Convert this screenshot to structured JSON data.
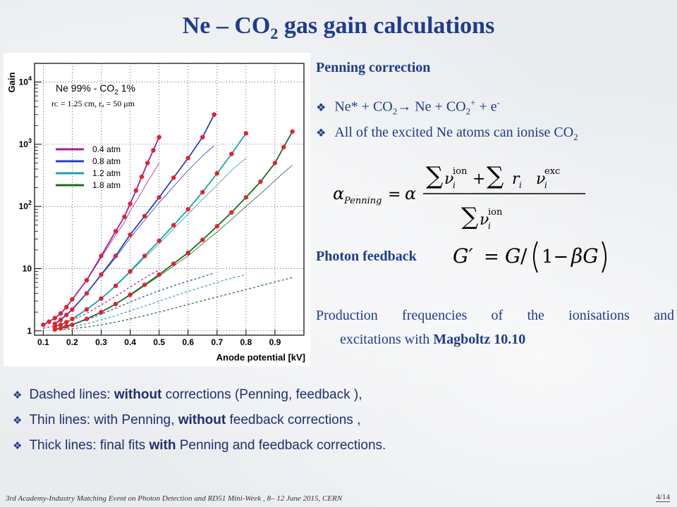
{
  "slide": {
    "title_main": "Ne – CO",
    "title_sub": "2",
    "title_rest": " gas gain calculations"
  },
  "chart_data": {
    "type": "line",
    "xlabel": "Anode potential [kV]",
    "ylabel": "Gain",
    "xlim": [
      0.07,
      1.0
    ],
    "ylim": [
      0.85,
      20000
    ],
    "yscale": "log",
    "x_ticks": [
      "0.1",
      "0.2",
      "0.3",
      "0.4",
      "0.5",
      "0.6",
      "0.7",
      "0.8",
      "0.9"
    ],
    "y_ticks": [
      "1",
      "10",
      "10^2",
      "10^3",
      "10^4"
    ],
    "annotation_gas": "Ne 99% - CO",
    "annotation_gas_sub": "2",
    "annotation_gas_rest": " 1%",
    "annotation_geom": "rᴄ = 1.25 cm, rₐ = 50 μm",
    "legend_position": "left-middle",
    "series": [
      {
        "name": "0.4 atm",
        "color": "#a020a0",
        "points_x": [
          0.1,
          0.12,
          0.14,
          0.16,
          0.18,
          0.2,
          0.25,
          0.3,
          0.35,
          0.38,
          0.4,
          0.42,
          0.44,
          0.46,
          0.48,
          0.5
        ],
        "points_y": [
          1.25,
          1.4,
          1.6,
          1.9,
          2.4,
          3.2,
          6.5,
          16,
          40,
          68,
          110,
          180,
          300,
          500,
          800,
          1300
        ],
        "thin_y": [
          1.25,
          1.4,
          1.6,
          1.9,
          2.4,
          3.2,
          6.4,
          15,
          35,
          55,
          85,
          120,
          170,
          250,
          350,
          500
        ],
        "dashed_y": [
          1.1,
          1.15,
          1.2,
          1.28,
          1.37,
          1.5,
          1.9,
          2.6,
          3.6,
          4.4,
          5.1,
          5.8,
          6.6,
          7.5,
          8.5,
          9.5
        ]
      },
      {
        "name": "0.8 atm",
        "color": "#2b3fbf",
        "points_x": [
          0.14,
          0.16,
          0.18,
          0.2,
          0.25,
          0.3,
          0.35,
          0.4,
          0.45,
          0.5,
          0.55,
          0.6,
          0.65,
          0.69
        ],
        "points_y": [
          1.3,
          1.5,
          1.8,
          2.2,
          4,
          8,
          16,
          35,
          70,
          140,
          290,
          600,
          1300,
          3000
        ],
        "thin_y": [
          1.3,
          1.5,
          1.8,
          2.2,
          4,
          7.8,
          15,
          31,
          60,
          115,
          210,
          380,
          650,
          950
        ],
        "dashed_y": [
          1.1,
          1.15,
          1.2,
          1.28,
          1.5,
          1.85,
          2.3,
          2.9,
          3.6,
          4.4,
          5.3,
          6.3,
          7.4,
          8.5
        ]
      },
      {
        "name": "1.2 atm",
        "color": "#1fa0a8",
        "points_x": [
          0.14,
          0.16,
          0.18,
          0.2,
          0.25,
          0.3,
          0.35,
          0.4,
          0.45,
          0.5,
          0.55,
          0.6,
          0.65,
          0.7,
          0.75,
          0.8
        ],
        "points_y": [
          1.15,
          1.25,
          1.38,
          1.55,
          2.2,
          3.3,
          5.3,
          9,
          16,
          28,
          50,
          90,
          170,
          340,
          700,
          1500
        ],
        "thin_y": [
          1.15,
          1.25,
          1.38,
          1.55,
          2.2,
          3.3,
          5.2,
          8.7,
          15,
          25,
          44,
          75,
          130,
          220,
          380,
          600
        ],
        "dashed_y": [
          1.05,
          1.08,
          1.12,
          1.16,
          1.3,
          1.5,
          1.75,
          2.1,
          2.5,
          3,
          3.6,
          4.3,
          5.1,
          6,
          7,
          8
        ]
      },
      {
        "name": "1.8 atm",
        "color": "#1d6b1d",
        "points_x": [
          0.14,
          0.16,
          0.18,
          0.2,
          0.25,
          0.3,
          0.35,
          0.4,
          0.45,
          0.5,
          0.55,
          0.6,
          0.65,
          0.7,
          0.75,
          0.8,
          0.85,
          0.9,
          0.93,
          0.96
        ],
        "points_y": [
          1.05,
          1.1,
          1.18,
          1.25,
          1.55,
          2,
          2.7,
          3.8,
          5.5,
          8,
          12,
          18,
          29,
          48,
          80,
          140,
          250,
          500,
          900,
          1600
        ],
        "thin_y": [
          1.05,
          1.1,
          1.18,
          1.25,
          1.55,
          2,
          2.7,
          3.7,
          5.3,
          7.6,
          11,
          16,
          25,
          39,
          62,
          100,
          160,
          260,
          350,
          460
        ],
        "dashed_y": [
          1.02,
          1.04,
          1.06,
          1.08,
          1.15,
          1.25,
          1.38,
          1.55,
          1.75,
          2,
          2.3,
          2.65,
          3.05,
          3.5,
          4,
          4.6,
          5.3,
          6.1,
          6.6,
          7.2
        ]
      }
    ]
  },
  "right": {
    "penning_heading": "Penning correction",
    "b1_a": "Ne* + CO",
    "b1_sub": "2",
    "b1_arrow": "→",
    "b1_b": " Ne + CO",
    "b1_sub2": "2",
    "b1_sup2": "+",
    "b1_c": " + e",
    "b1_sup3": "-",
    "b2_a": "All of the excited Ne atoms can ionise CO",
    "b2_sub": "2",
    "photon_heading": "Photon feedback",
    "production_text_a": "Production frequencies of the ionisations and",
    "production_text_b": "excitations with ",
    "production_bold": "Magboltz 10.10"
  },
  "bottom": {
    "l1_a": "Dashed lines: ",
    "l1_b": "without",
    "l1_c": " corrections (Penning, feedback ),",
    "l2_a": "Thin lines: with Penning, ",
    "l2_b": "without",
    "l2_c": " feedback corrections ,",
    "l3_a": "Thick lines: final fits ",
    "l3_b": "with",
    "l3_c": " Penning and feedback corrections."
  },
  "footer": {
    "text": "3rd Academy-Industry Matching Event on Photon Detection and RD51 Mini-Week , 8– 12 June 2015, CERN",
    "page": "4/14"
  }
}
